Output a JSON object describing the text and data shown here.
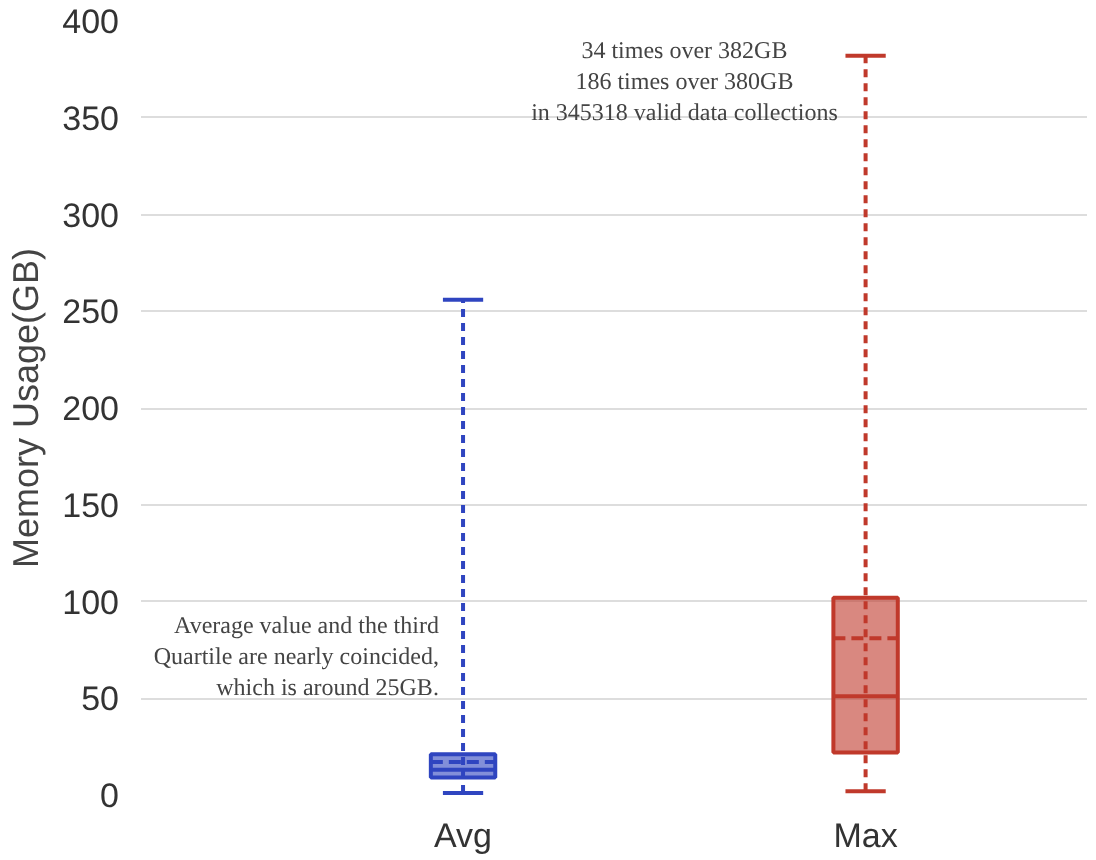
{
  "chart_data": {
    "type": "box",
    "ylabel": "Memory Usage(GB)",
    "categories": [
      "Avg",
      "Max"
    ],
    "colors": [
      "#2f45c0",
      "#c0392b"
    ],
    "boxes": [
      {
        "low": 1,
        "q1": 9,
        "median": 13,
        "q3": 21,
        "high": 256,
        "mean": 17
      },
      {
        "low": 2,
        "q1": 22,
        "median": 51,
        "q3": 102,
        "high": 382,
        "mean": 81
      }
    ],
    "ylim": [
      0,
      400
    ],
    "yticks": [
      0,
      50,
      100,
      150,
      200,
      250,
      300,
      350,
      400
    ],
    "grid": "y",
    "annotations": [
      "Average value and the third\nQuartile are nearly coincided,\nwhich is around 25GB.",
      "34 times over 382GB\n186 times over 380GB\nin 345318 valid data collections"
    ]
  }
}
